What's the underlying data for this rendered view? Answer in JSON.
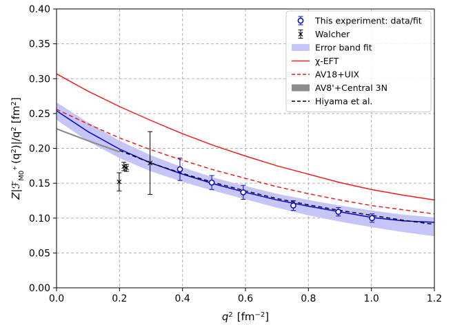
{
  "chart_data": {
    "type": "line",
    "xlabel_main": "q",
    "xlabel_sup": "2",
    "xlabel_unit": "[fm",
    "xlabel_unit_sup": "−2",
    "xlabel_unit_close": "]",
    "ylabel_prefix": "Z|",
    "ylabel_F": "ℱ",
    "ylabel_sub": "M0",
    "ylabel_subsup": "+",
    "ylabel_mid": "(q",
    "ylabel_mid_sup": "2",
    "ylabel_mid2": ")|/q",
    "ylabel_mid2_sup": "2",
    "ylabel_unit": "[fm",
    "ylabel_unit_sup": "2",
    "ylabel_unit_close": "]",
    "xlim": [
      0.0,
      1.2
    ],
    "ylim": [
      0.0,
      0.4
    ],
    "xticks": [
      "0.0",
      "0.2",
      "0.4",
      "0.6",
      "0.8",
      "1.0",
      "1.2"
    ],
    "yticks": [
      "0.00",
      "0.05",
      "0.10",
      "0.15",
      "0.20",
      "0.25",
      "0.30",
      "0.35",
      "0.40"
    ],
    "grid": true,
    "legend_position": "top-right",
    "colors": {
      "experiment": "#0000cc",
      "walcher": "#000000",
      "band": "#c5c5f7",
      "chi_eft": "#ee1c1c",
      "av18": "#ee1c1c",
      "av8": "#8c8c8c",
      "hiyama": "#000000",
      "grid": "#b0b0b0"
    },
    "legend": [
      {
        "key": "experiment",
        "label": "This experiment: data/fit"
      },
      {
        "key": "walcher",
        "label": "Walcher"
      },
      {
        "key": "band",
        "label": "Error band fit"
      },
      {
        "key": "chi_eft",
        "label": "χ-EFT"
      },
      {
        "key": "av18",
        "label": "AV18+UIX"
      },
      {
        "key": "av8",
        "label": "AV8'+Central 3N"
      },
      {
        "key": "hiyama",
        "label": "Hiyama et al."
      }
    ],
    "experiment_points": [
      {
        "x": 0.392,
        "y": 0.17,
        "err": 0.016
      },
      {
        "x": 0.493,
        "y": 0.151,
        "err": 0.01
      },
      {
        "x": 0.593,
        "y": 0.137,
        "err": 0.01
      },
      {
        "x": 0.752,
        "y": 0.118,
        "err": 0.007
      },
      {
        "x": 0.895,
        "y": 0.109,
        "err": 0.006
      },
      {
        "x": 1.002,
        "y": 0.1,
        "err": 0.006
      }
    ],
    "walcher_points": [
      {
        "x": 0.199,
        "y": 0.152,
        "err": 0.013
      },
      {
        "x": 0.214,
        "y": 0.174,
        "err": 0.006
      },
      {
        "x": 0.222,
        "y": 0.172,
        "err": 0.005
      },
      {
        "x": 0.297,
        "y": 0.179,
        "err": 0.045
      }
    ],
    "fit_curve": {
      "x": [
        0.0,
        0.1,
        0.2,
        0.3,
        0.4,
        0.5,
        0.6,
        0.7,
        0.8,
        0.9,
        1.0,
        1.1,
        1.2
      ],
      "y": [
        0.254,
        0.224,
        0.199,
        0.179,
        0.163,
        0.149,
        0.137,
        0.126,
        0.117,
        0.109,
        0.101,
        0.096,
        0.094
      ]
    },
    "error_band": {
      "x": [
        0.0,
        0.1,
        0.2,
        0.3,
        0.4,
        0.5,
        0.6,
        0.7,
        0.8,
        0.9,
        1.0,
        1.1,
        1.2
      ],
      "upper": [
        0.266,
        0.237,
        0.211,
        0.19,
        0.173,
        0.158,
        0.146,
        0.135,
        0.126,
        0.118,
        0.111,
        0.105,
        0.101
      ],
      "lower": [
        0.241,
        0.21,
        0.186,
        0.167,
        0.152,
        0.139,
        0.127,
        0.115,
        0.104,
        0.095,
        0.087,
        0.08,
        0.074
      ]
    },
    "chi_eft_curve": {
      "x": [
        0.0,
        0.1,
        0.2,
        0.3,
        0.4,
        0.5,
        0.6,
        0.7,
        0.8,
        0.9,
        1.0,
        1.1,
        1.2
      ],
      "y": [
        0.307,
        0.282,
        0.26,
        0.24,
        0.221,
        0.204,
        0.189,
        0.175,
        0.163,
        0.151,
        0.141,
        0.133,
        0.126
      ]
    },
    "av18_curve": {
      "x": [
        0.0,
        0.1,
        0.2,
        0.3,
        0.4,
        0.5,
        0.6,
        0.7,
        0.8,
        0.9,
        1.0,
        1.1,
        1.2
      ],
      "y": [
        0.256,
        0.235,
        0.215,
        0.198,
        0.183,
        0.169,
        0.157,
        0.145,
        0.135,
        0.126,
        0.118,
        0.112,
        0.106
      ]
    },
    "av8_curve": {
      "x": [
        0.0,
        0.1,
        0.2
      ],
      "y": [
        0.228,
        0.211,
        0.195
      ]
    },
    "hiyama_curve": {
      "x": [
        0.2,
        0.3,
        0.4,
        0.5,
        0.6,
        0.7,
        0.8,
        0.9,
        1.0,
        1.1,
        1.2
      ],
      "y": [
        0.197,
        0.179,
        0.164,
        0.151,
        0.139,
        0.128,
        0.119,
        0.111,
        0.104,
        0.097,
        0.091
      ]
    }
  }
}
